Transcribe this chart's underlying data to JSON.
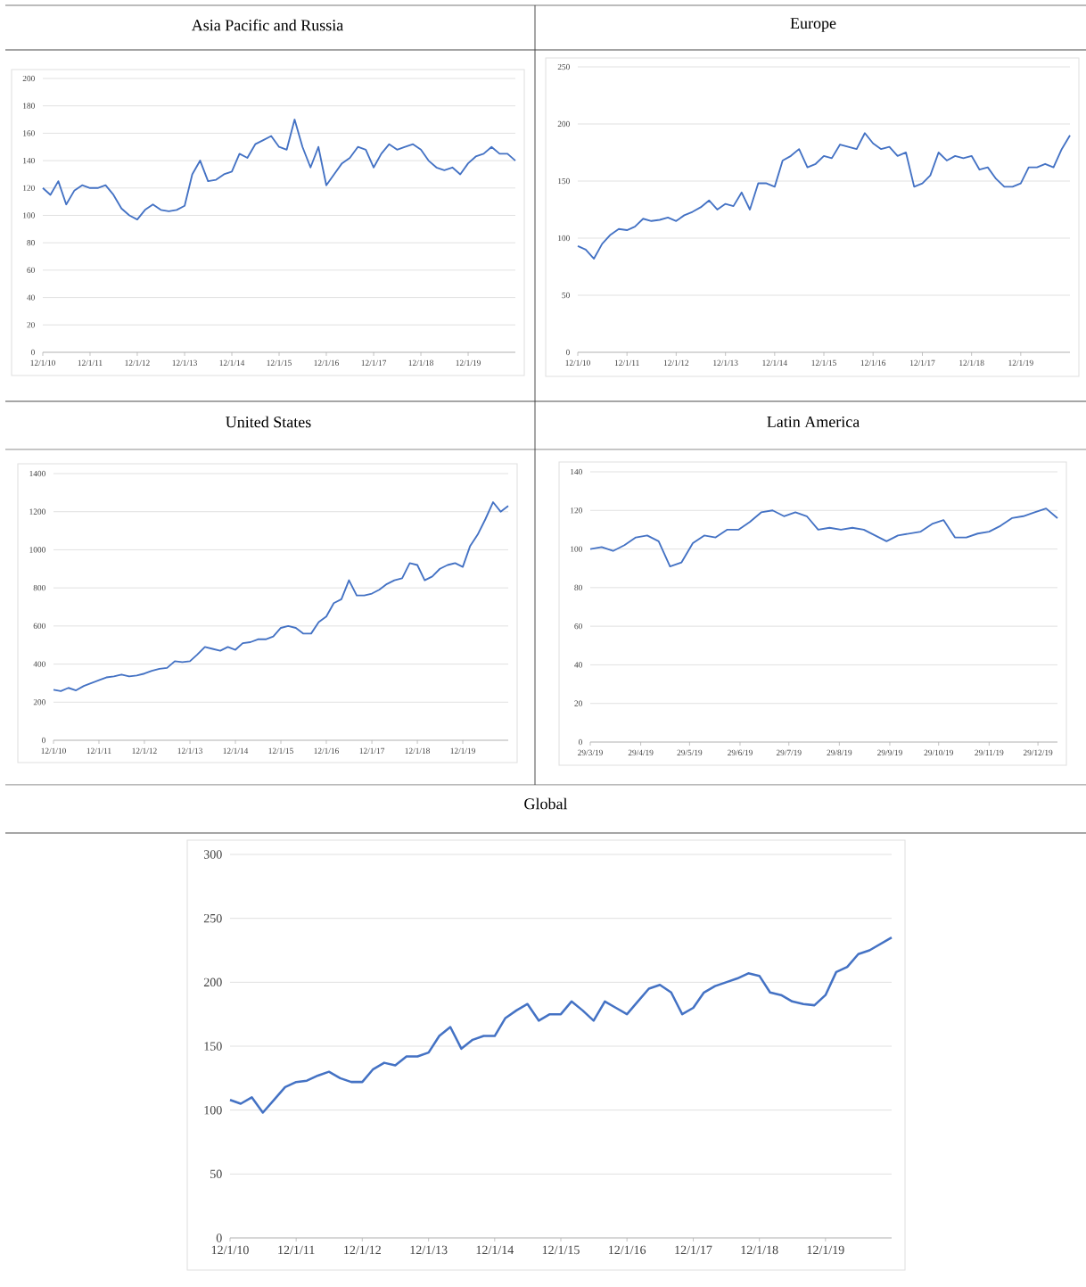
{
  "chart_data": [
    {
      "type": "line",
      "title": "Asia Pacific and Russia",
      "color": "#4472c4",
      "grid": "y",
      "xlim": [
        "2010-01-12",
        "2020-01-12"
      ],
      "ylim": [
        0,
        200
      ],
      "yticks": [
        0,
        20,
        40,
        60,
        80,
        100,
        120,
        140,
        160,
        180,
        200
      ],
      "xticks": [
        {
          "value": "2010-01-12",
          "label": "12/1/10"
        },
        {
          "value": "2011-01-12",
          "label": "12/1/11"
        },
        {
          "value": "2012-01-12",
          "label": "12/1/12"
        },
        {
          "value": "2013-01-12",
          "label": "12/1/13"
        },
        {
          "value": "2014-01-12",
          "label": "12/1/14"
        },
        {
          "value": "2015-01-12",
          "label": "12/1/15"
        },
        {
          "value": "2016-01-12",
          "label": "12/1/16"
        },
        {
          "value": "2017-01-12",
          "label": "12/1/17"
        },
        {
          "value": "2018-01-12",
          "label": "12/1/18"
        },
        {
          "value": "2019-01-12",
          "label": "12/1/19"
        }
      ],
      "x": [
        "2010-01-12",
        "2010-03-12",
        "2010-05-12",
        "2010-07-12",
        "2010-09-12",
        "2010-11-12",
        "2011-01-12",
        "2011-03-12",
        "2011-05-12",
        "2011-07-12",
        "2011-09-12",
        "2011-11-12",
        "2012-01-12",
        "2012-03-12",
        "2012-05-12",
        "2012-07-12",
        "2012-09-12",
        "2012-11-12",
        "2013-01-12",
        "2013-03-12",
        "2013-05-12",
        "2013-07-12",
        "2013-09-12",
        "2013-11-12",
        "2014-01-12",
        "2014-03-12",
        "2014-05-12",
        "2014-07-12",
        "2014-09-12",
        "2014-11-12",
        "2015-01-12",
        "2015-03-12",
        "2015-05-12",
        "2015-07-12",
        "2015-09-12",
        "2015-11-12",
        "2016-01-12",
        "2016-03-12",
        "2016-05-12",
        "2016-07-12",
        "2016-09-12",
        "2016-11-12",
        "2017-01-12",
        "2017-03-12",
        "2017-05-12",
        "2017-07-12",
        "2017-09-12",
        "2017-11-12",
        "2018-01-12",
        "2018-03-12",
        "2018-05-12",
        "2018-07-12",
        "2018-09-12",
        "2018-11-12",
        "2019-01-12",
        "2019-03-12",
        "2019-05-12",
        "2019-07-12",
        "2019-09-12",
        "2019-11-12",
        "2020-01-12"
      ],
      "values": [
        120,
        115,
        125,
        108,
        118,
        122,
        120,
        120,
        122,
        115,
        105,
        100,
        97,
        104,
        108,
        104,
        103,
        104,
        107,
        130,
        140,
        125,
        126,
        130,
        132,
        145,
        142,
        152,
        155,
        158,
        150,
        148,
        170,
        150,
        135,
        150,
        122,
        130,
        138,
        142,
        150,
        148,
        135,
        145,
        152,
        148,
        150,
        152,
        148,
        140,
        135,
        133,
        135,
        130,
        138,
        143,
        145,
        150,
        145,
        145,
        140
      ]
    },
    {
      "type": "line",
      "title": "Europe",
      "color": "#4472c4",
      "grid": "y",
      "xlim": [
        "2010-01-12",
        "2020-01-12"
      ],
      "ylim": [
        0,
        250
      ],
      "yticks": [
        0,
        50,
        100,
        150,
        200,
        250
      ],
      "xticks": [
        {
          "value": "2010-01-12",
          "label": "12/1/10"
        },
        {
          "value": "2011-01-12",
          "label": "12/1/11"
        },
        {
          "value": "2012-01-12",
          "label": "12/1/12"
        },
        {
          "value": "2013-01-12",
          "label": "12/1/13"
        },
        {
          "value": "2014-01-12",
          "label": "12/1/14"
        },
        {
          "value": "2015-01-12",
          "label": "12/1/15"
        },
        {
          "value": "2016-01-12",
          "label": "12/1/16"
        },
        {
          "value": "2017-01-12",
          "label": "12/1/17"
        },
        {
          "value": "2018-01-12",
          "label": "12/1/18"
        },
        {
          "value": "2019-01-12",
          "label": "12/1/19"
        }
      ],
      "x": [
        "2010-01-12",
        "2010-03-12",
        "2010-05-12",
        "2010-07-12",
        "2010-09-12",
        "2010-11-12",
        "2011-01-12",
        "2011-03-12",
        "2011-05-12",
        "2011-07-12",
        "2011-09-12",
        "2011-11-12",
        "2012-01-12",
        "2012-03-12",
        "2012-05-12",
        "2012-07-12",
        "2012-09-12",
        "2012-11-12",
        "2013-01-12",
        "2013-03-12",
        "2013-05-12",
        "2013-07-12",
        "2013-09-12",
        "2013-11-12",
        "2014-01-12",
        "2014-03-12",
        "2014-05-12",
        "2014-07-12",
        "2014-09-12",
        "2014-11-12",
        "2015-01-12",
        "2015-03-12",
        "2015-05-12",
        "2015-07-12",
        "2015-09-12",
        "2015-11-12",
        "2016-01-12",
        "2016-03-12",
        "2016-05-12",
        "2016-07-12",
        "2016-09-12",
        "2016-11-12",
        "2017-01-12",
        "2017-03-12",
        "2017-05-12",
        "2017-07-12",
        "2017-09-12",
        "2017-11-12",
        "2018-01-12",
        "2018-03-12",
        "2018-05-12",
        "2018-07-12",
        "2018-09-12",
        "2018-11-12",
        "2019-01-12",
        "2019-03-12",
        "2019-05-12",
        "2019-07-12",
        "2019-09-12",
        "2019-11-12",
        "2020-01-12"
      ],
      "values": [
        93,
        90,
        82,
        95,
        103,
        108,
        107,
        110,
        117,
        115,
        116,
        118,
        115,
        120,
        123,
        127,
        133,
        125,
        130,
        128,
        140,
        125,
        148,
        148,
        145,
        168,
        172,
        178,
        162,
        165,
        172,
        170,
        182,
        180,
        178,
        192,
        183,
        178,
        180,
        172,
        175,
        145,
        148,
        155,
        175,
        168,
        172,
        170,
        172,
        160,
        162,
        152,
        145,
        145,
        148,
        162,
        162,
        165,
        162,
        178,
        190
      ]
    },
    {
      "type": "line",
      "title": "United States",
      "color": "#4472c4",
      "grid": "y",
      "xlim": [
        "2010-01-12",
        "2020-01-12"
      ],
      "ylim": [
        0,
        1400
      ],
      "yticks": [
        0,
        200,
        400,
        600,
        800,
        1000,
        1200,
        1400
      ],
      "xticks": [
        {
          "value": "2010-01-12",
          "label": "12/1/10"
        },
        {
          "value": "2011-01-12",
          "label": "12/1/11"
        },
        {
          "value": "2012-01-12",
          "label": "12/1/12"
        },
        {
          "value": "2013-01-12",
          "label": "12/1/13"
        },
        {
          "value": "2014-01-12",
          "label": "12/1/14"
        },
        {
          "value": "2015-01-12",
          "label": "12/1/15"
        },
        {
          "value": "2016-01-12",
          "label": "12/1/16"
        },
        {
          "value": "2017-01-12",
          "label": "12/1/17"
        },
        {
          "value": "2018-01-12",
          "label": "12/1/18"
        },
        {
          "value": "2019-01-12",
          "label": "12/1/19"
        }
      ],
      "x": [
        "2010-01-12",
        "2010-03-12",
        "2010-05-12",
        "2010-07-12",
        "2010-09-12",
        "2010-11-12",
        "2011-01-12",
        "2011-03-12",
        "2011-05-12",
        "2011-07-12",
        "2011-09-12",
        "2011-11-12",
        "2012-01-12",
        "2012-03-12",
        "2012-05-12",
        "2012-07-12",
        "2012-09-12",
        "2012-11-12",
        "2013-01-12",
        "2013-03-12",
        "2013-05-12",
        "2013-07-12",
        "2013-09-12",
        "2013-11-12",
        "2014-01-12",
        "2014-03-12",
        "2014-05-12",
        "2014-07-12",
        "2014-09-12",
        "2014-11-12",
        "2015-01-12",
        "2015-03-12",
        "2015-05-12",
        "2015-07-12",
        "2015-09-12",
        "2015-11-12",
        "2016-01-12",
        "2016-03-12",
        "2016-05-12",
        "2016-07-12",
        "2016-09-12",
        "2016-11-12",
        "2017-01-12",
        "2017-03-12",
        "2017-05-12",
        "2017-07-12",
        "2017-09-12",
        "2017-11-12",
        "2018-01-12",
        "2018-03-12",
        "2018-05-12",
        "2018-07-12",
        "2018-09-12",
        "2018-11-12",
        "2019-01-12",
        "2019-03-12",
        "2019-05-12",
        "2019-07-12",
        "2019-09-12",
        "2019-11-12",
        "2020-01-12"
      ],
      "values": [
        265,
        258,
        275,
        262,
        285,
        300,
        315,
        330,
        335,
        345,
        335,
        340,
        350,
        365,
        375,
        380,
        415,
        410,
        415,
        450,
        490,
        480,
        470,
        490,
        475,
        510,
        515,
        530,
        530,
        545,
        590,
        600,
        590,
        560,
        560,
        620,
        650,
        720,
        740,
        840,
        760,
        760,
        770,
        790,
        820,
        840,
        850,
        930,
        920,
        840,
        860,
        900,
        920,
        930,
        910,
        1020,
        1080,
        1160,
        1250,
        1200,
        1230
      ]
    },
    {
      "type": "line",
      "title": "Latin America",
      "color": "#4472c4",
      "grid": "y",
      "xlim": [
        "2019-03-29",
        "2020-01-10"
      ],
      "ylim": [
        0,
        140
      ],
      "yticks": [
        0,
        20,
        40,
        60,
        80,
        100,
        120,
        140
      ],
      "xticks": [
        {
          "value": "2019-03-29",
          "label": "29/3/19"
        },
        {
          "value": "2019-04-29",
          "label": "29/4/19"
        },
        {
          "value": "2019-05-29",
          "label": "29/5/19"
        },
        {
          "value": "2019-06-29",
          "label": "29/6/19"
        },
        {
          "value": "2019-07-29",
          "label": "29/7/19"
        },
        {
          "value": "2019-08-29",
          "label": "29/8/19"
        },
        {
          "value": "2019-09-29",
          "label": "29/9/19"
        },
        {
          "value": "2019-10-29",
          "label": "29/10/19"
        },
        {
          "value": "2019-11-29",
          "label": "29/11/19"
        },
        {
          "value": "2019-12-29",
          "label": "29/12/19"
        }
      ],
      "x": [
        "2019-03-29",
        "2019-04-05",
        "2019-04-12",
        "2019-04-19",
        "2019-04-26",
        "2019-05-03",
        "2019-05-10",
        "2019-05-17",
        "2019-05-24",
        "2019-05-31",
        "2019-06-07",
        "2019-06-14",
        "2019-06-21",
        "2019-06-28",
        "2019-07-05",
        "2019-07-12",
        "2019-07-19",
        "2019-07-26",
        "2019-08-02",
        "2019-08-09",
        "2019-08-16",
        "2019-08-23",
        "2019-08-30",
        "2019-09-06",
        "2019-09-13",
        "2019-09-20",
        "2019-09-27",
        "2019-10-04",
        "2019-10-11",
        "2019-10-18",
        "2019-10-25",
        "2019-11-01",
        "2019-11-08",
        "2019-11-15",
        "2019-11-22",
        "2019-11-29",
        "2019-12-06",
        "2019-12-13",
        "2019-12-20",
        "2019-12-27",
        "2020-01-03",
        "2020-01-10"
      ],
      "values": [
        100,
        101,
        99,
        102,
        106,
        107,
        104,
        91,
        93,
        103,
        107,
        106,
        110,
        110,
        114,
        119,
        120,
        117,
        119,
        117,
        110,
        111,
        110,
        111,
        110,
        107,
        104,
        107,
        108,
        109,
        113,
        115,
        106,
        106,
        108,
        109,
        112,
        116,
        117,
        119,
        121,
        116
      ]
    },
    {
      "type": "line",
      "title": "Global",
      "color": "#4472c4",
      "grid": "y",
      "xlim": [
        "2010-01-12",
        "2020-01-12"
      ],
      "ylim": [
        0,
        300
      ],
      "yticks": [
        0,
        50,
        100,
        150,
        200,
        250,
        300
      ],
      "xticks": [
        {
          "value": "2010-01-12",
          "label": "12/1/10"
        },
        {
          "value": "2011-01-12",
          "label": "12/1/11"
        },
        {
          "value": "2012-01-12",
          "label": "12/1/12"
        },
        {
          "value": "2013-01-12",
          "label": "12/1/13"
        },
        {
          "value": "2014-01-12",
          "label": "12/1/14"
        },
        {
          "value": "2015-01-12",
          "label": "12/1/15"
        },
        {
          "value": "2016-01-12",
          "label": "12/1/16"
        },
        {
          "value": "2017-01-12",
          "label": "12/1/17"
        },
        {
          "value": "2018-01-12",
          "label": "12/1/18"
        },
        {
          "value": "2019-01-12",
          "label": "12/1/19"
        }
      ],
      "x": [
        "2010-01-12",
        "2010-03-12",
        "2010-05-12",
        "2010-07-12",
        "2010-09-12",
        "2010-11-12",
        "2011-01-12",
        "2011-03-12",
        "2011-05-12",
        "2011-07-12",
        "2011-09-12",
        "2011-11-12",
        "2012-01-12",
        "2012-03-12",
        "2012-05-12",
        "2012-07-12",
        "2012-09-12",
        "2012-11-12",
        "2013-01-12",
        "2013-03-12",
        "2013-05-12",
        "2013-07-12",
        "2013-09-12",
        "2013-11-12",
        "2014-01-12",
        "2014-03-12",
        "2014-05-12",
        "2014-07-12",
        "2014-09-12",
        "2014-11-12",
        "2015-01-12",
        "2015-03-12",
        "2015-05-12",
        "2015-07-12",
        "2015-09-12",
        "2015-11-12",
        "2016-01-12",
        "2016-03-12",
        "2016-05-12",
        "2016-07-12",
        "2016-09-12",
        "2016-11-12",
        "2017-01-12",
        "2017-03-12",
        "2017-05-12",
        "2017-07-12",
        "2017-09-12",
        "2017-11-12",
        "2018-01-12",
        "2018-03-12",
        "2018-05-12",
        "2018-07-12",
        "2018-09-12",
        "2018-11-12",
        "2019-01-12",
        "2019-03-12",
        "2019-05-12",
        "2019-07-12",
        "2019-09-12",
        "2019-11-12",
        "2020-01-12"
      ],
      "values": [
        108,
        105,
        110,
        98,
        108,
        118,
        122,
        123,
        127,
        130,
        125,
        122,
        122,
        132,
        137,
        135,
        142,
        142,
        145,
        158,
        165,
        148,
        155,
        158,
        158,
        172,
        178,
        183,
        170,
        175,
        175,
        185,
        178,
        170,
        185,
        180,
        175,
        185,
        195,
        198,
        192,
        175,
        180,
        192,
        197,
        200,
        203,
        207,
        205,
        192,
        190,
        185,
        183,
        182,
        190,
        208,
        212,
        222,
        225,
        230,
        235
      ]
    }
  ]
}
